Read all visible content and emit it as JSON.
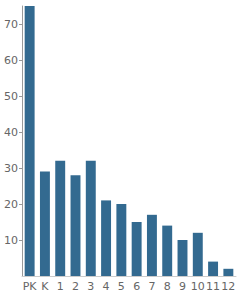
{
  "chart_data": {
    "type": "bar",
    "categories": [
      "PK",
      "K",
      "1",
      "2",
      "3",
      "4",
      "5",
      "6",
      "7",
      "8",
      "9",
      "10",
      "11",
      "12"
    ],
    "values": [
      75,
      29,
      32,
      28,
      32,
      21,
      20,
      15,
      17,
      14,
      10,
      12,
      4,
      2
    ],
    "color": "#336a90",
    "ylim": [
      0,
      75
    ],
    "yticks": [
      10,
      20,
      30,
      40,
      50,
      60,
      70
    ],
    "grid": false
  }
}
